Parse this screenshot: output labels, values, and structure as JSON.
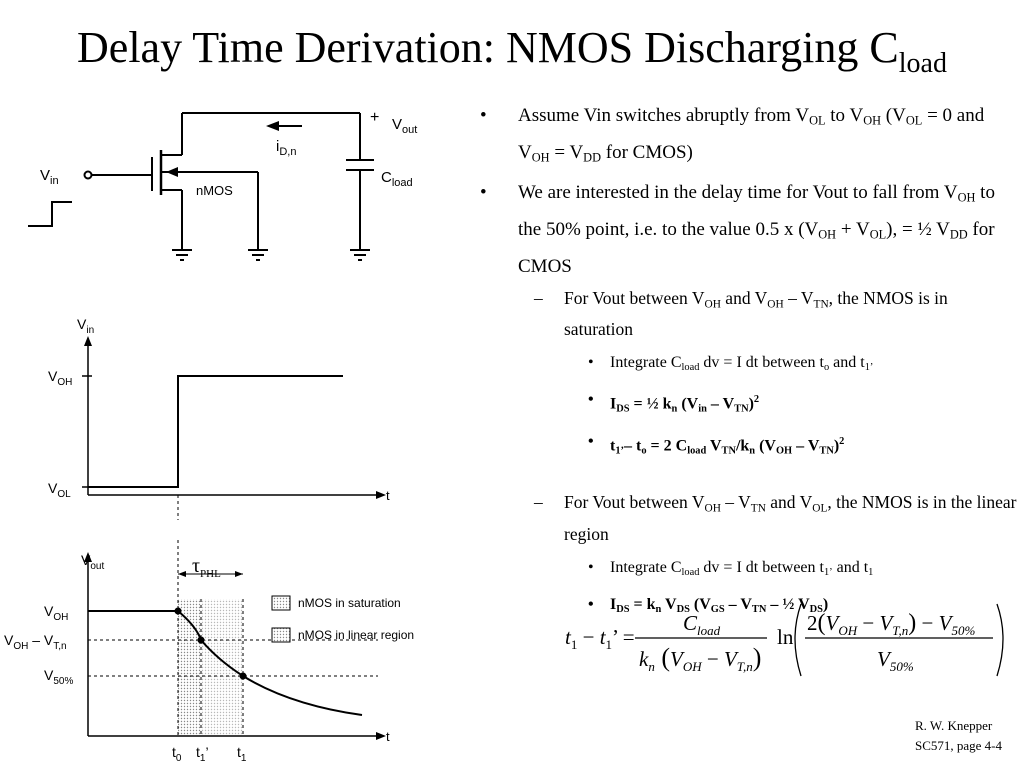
{
  "title": {
    "main": "Delay Time Derivation: NMOS Discharging C",
    "sub": "load"
  },
  "bullets": {
    "b1": {
      "marker": "•",
      "t1": "Assume Vin switches abruptly from V",
      "s1": "OL",
      "t2": " to V",
      "s2": "OH",
      "t3": " (V",
      "s3": "OL",
      "t4": " = 0 and V",
      "s4": "OH",
      "t5": " = V",
      "s5": "DD",
      "t6": " for CMOS)"
    },
    "b2": {
      "marker": "•",
      "t1": "We are interested in the delay time for Vout to fall from V",
      "s1": "OH",
      "t2": " to the 50% point, i.e. to the value 0.5 x (V",
      "s2": "OH",
      "t3": " + V",
      "s3": "OL",
      "t4": "), = ½ V",
      "s4": "DD",
      "t5": " for CMOS"
    },
    "d1": {
      "marker": "–",
      "t1": "For Vout between V",
      "s1": "OH",
      "t2": " and V",
      "s2": "OH",
      "t3": " – V",
      "s3": "TN",
      "t4": ", the NMOS is in saturation"
    },
    "d1a": {
      "marker": "•",
      "t1": "Integrate C",
      "s1": "load",
      "t2": " dv = I dt between t",
      "s2": "o",
      "t3": " and t",
      "s3": "1’"
    },
    "d1b": {
      "marker": "•",
      "t1": "I",
      "s1": "DS",
      "t2": " = ½ k",
      "s2": "n",
      "t3": " (V",
      "s3": "in",
      "t4": " – V",
      "s4": "TN",
      "t5": ")",
      "p1": "2"
    },
    "d1c": {
      "marker": "•",
      "t1": "t",
      "s1": "1’",
      "t2": "– t",
      "s2": "o",
      "t3": " = 2 C",
      "s3": "load",
      "t4": " V",
      "s4": "TN",
      "t5": "/k",
      "s5": "n",
      "t6": " (V",
      "s6": "OH",
      "t7": " – V",
      "s7": "TN",
      "t8": ")",
      "p1": "2"
    },
    "d2": {
      "marker": "–",
      "t1": "For Vout between V",
      "s1": "OH",
      "t2": " – V",
      "s2": "TN",
      "t3": " and V",
      "s3": "OL",
      "t4": ", the NMOS is in the linear region"
    },
    "d2a": {
      "marker": "•",
      "t1": "Integrate C",
      "s1": "load",
      "t2": " dv = I dt between  t",
      "s2": "1’",
      "t3": " and t",
      "s3": "1"
    },
    "d2b": {
      "marker": "•",
      "t1": "I",
      "s1": "DS",
      "t2": " = k",
      "s2": "n",
      "t3": " V",
      "s3": "DS",
      "t4": " (V",
      "s4": "GS",
      "t5": " – V",
      "s5": "TN",
      "t6": " – ½ V",
      "s6": "DS",
      "t7": ")"
    }
  },
  "circuit": {
    "vin": "V",
    "vin_sub": "in",
    "plus": "+",
    "vout": "V",
    "vout_sub": "out",
    "id": "i",
    "id_sub": "D,n",
    "nmos": "nMOS",
    "cload": "C",
    "cload_sub": "load"
  },
  "vin_plot": {
    "ylabel": "V",
    "ylabel_sub": "in",
    "voh": "V",
    "voh_sub": "OH",
    "vol": "V",
    "vol_sub": "OL",
    "t": "t"
  },
  "vout_plot": {
    "ylabel": "V",
    "ylabel_sub": "out",
    "tau": "τ",
    "tau_sub": "PHL",
    "voh": "V",
    "voh_sub": "OH",
    "vohvt": "V",
    "vohvt_sub1": "OH",
    "vohvt_mid": " – V",
    "vohvt_sub2": "T,n",
    "v50": "V",
    "v50_sub": "50%",
    "legend_sat": "nMOS in saturation",
    "legend_lin": "nMOS in linear region",
    "t": "t",
    "t0": "t",
    "t0_sub": "0",
    "t1p": "t",
    "t1p_sub": "1",
    "t1p_prime": "’",
    "t1": "t",
    "t1_sub": "1"
  },
  "formula": {
    "lhs1": "t",
    "lhs1_sub": "1",
    "minus": " − ",
    "lhs2": "t",
    "lhs2_sub": "1",
    "prime": "’ =",
    "num": "C",
    "num_sub": "load",
    "den_k": "k",
    "den_k_sub": "n",
    "den_v1": "V",
    "den_v1_sub": "OH",
    "den_minus": " − ",
    "den_v2": "V",
    "den_v2_sub": "T,n",
    "ln": "ln",
    "rn_2": "2",
    "rn_v1": "V",
    "rn_v1_sub": "OH",
    "rn_minus": " − ",
    "rn_v2": "V",
    "rn_v2_sub": "T,n",
    "rn_minus2": " − ",
    "rn_v3": "V",
    "rn_v3_sub": "50%",
    "rd": "V",
    "rd_sub": "50%"
  },
  "footer": {
    "line1": "R. W. Knepper",
    "line2": "SC571,  page 4-4"
  }
}
